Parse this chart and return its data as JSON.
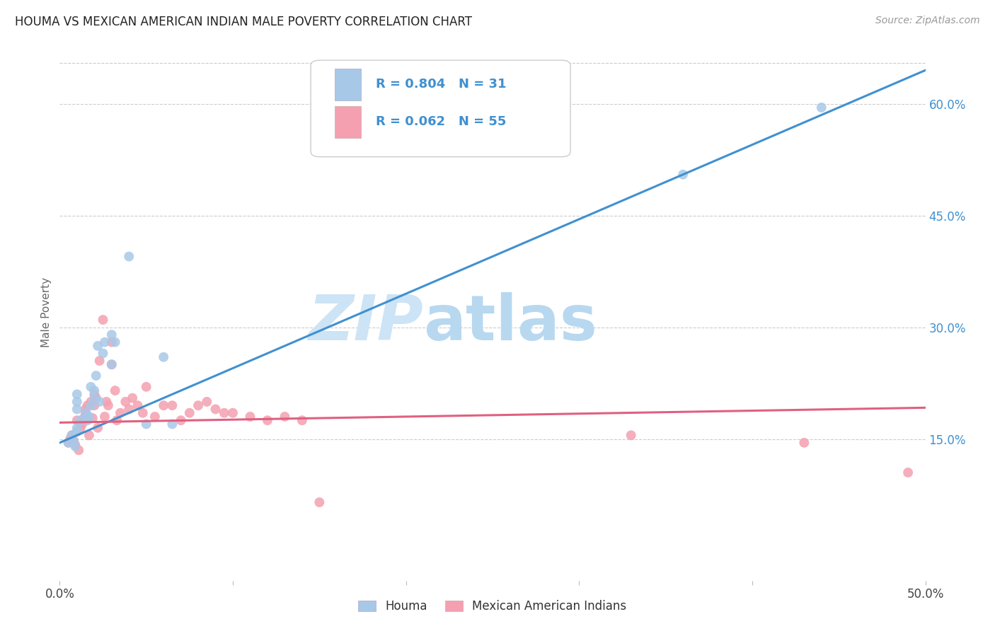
{
  "title": "HOUMA VS MEXICAN AMERICAN INDIAN MALE POVERTY CORRELATION CHART",
  "source": "Source: ZipAtlas.com",
  "ylabel": "Male Poverty",
  "xlim": [
    0.0,
    0.5
  ],
  "ylim": [
    -0.04,
    0.68
  ],
  "yticks_right": [
    0.15,
    0.3,
    0.45,
    0.6
  ],
  "ytick_labels_right": [
    "15.0%",
    "30.0%",
    "45.0%",
    "60.0%"
  ],
  "legend_r1": "0.804",
  "legend_n1": "31",
  "legend_r2": "0.062",
  "legend_n2": "55",
  "blue_scatter_color": "#a8c8e8",
  "pink_scatter_color": "#f4a0b0",
  "blue_line_color": "#4090d0",
  "pink_line_color": "#e06080",
  "houma_x": [
    0.005,
    0.007,
    0.008,
    0.009,
    0.01,
    0.01,
    0.01,
    0.01,
    0.01,
    0.012,
    0.015,
    0.016,
    0.017,
    0.018,
    0.018,
    0.02,
    0.02,
    0.021,
    0.022,
    0.023,
    0.025,
    0.026,
    0.03,
    0.03,
    0.032,
    0.04,
    0.05,
    0.06,
    0.065,
    0.36,
    0.44
  ],
  "houma_y": [
    0.145,
    0.155,
    0.148,
    0.14,
    0.16,
    0.165,
    0.19,
    0.2,
    0.21,
    0.175,
    0.185,
    0.175,
    0.18,
    0.195,
    0.22,
    0.205,
    0.215,
    0.235,
    0.275,
    0.2,
    0.265,
    0.28,
    0.25,
    0.29,
    0.28,
    0.395,
    0.17,
    0.26,
    0.17,
    0.505,
    0.595
  ],
  "mexican_x": [
    0.005,
    0.006,
    0.007,
    0.008,
    0.009,
    0.01,
    0.01,
    0.011,
    0.012,
    0.013,
    0.014,
    0.015,
    0.015,
    0.016,
    0.017,
    0.018,
    0.019,
    0.02,
    0.02,
    0.021,
    0.022,
    0.023,
    0.025,
    0.026,
    0.027,
    0.028,
    0.03,
    0.03,
    0.032,
    0.033,
    0.035,
    0.038,
    0.04,
    0.042,
    0.045,
    0.048,
    0.05,
    0.055,
    0.06,
    0.065,
    0.07,
    0.075,
    0.08,
    0.085,
    0.09,
    0.095,
    0.1,
    0.11,
    0.12,
    0.13,
    0.14,
    0.15,
    0.33,
    0.43,
    0.49
  ],
  "mexican_y": [
    0.145,
    0.15,
    0.155,
    0.148,
    0.142,
    0.16,
    0.175,
    0.135,
    0.165,
    0.17,
    0.178,
    0.185,
    0.19,
    0.195,
    0.155,
    0.2,
    0.178,
    0.21,
    0.195,
    0.205,
    0.165,
    0.255,
    0.31,
    0.18,
    0.2,
    0.195,
    0.25,
    0.28,
    0.215,
    0.175,
    0.185,
    0.2,
    0.19,
    0.205,
    0.195,
    0.185,
    0.22,
    0.18,
    0.195,
    0.195,
    0.175,
    0.185,
    0.195,
    0.2,
    0.19,
    0.185,
    0.185,
    0.18,
    0.175,
    0.18,
    0.175,
    0.065,
    0.155,
    0.145,
    0.105
  ],
  "background_color": "#ffffff",
  "grid_color": "#cccccc",
  "watermark_text": "ZIP",
  "watermark_text2": "atlas",
  "watermark_color": "#cce4f5",
  "watermark_color2": "#b8d8f0"
}
